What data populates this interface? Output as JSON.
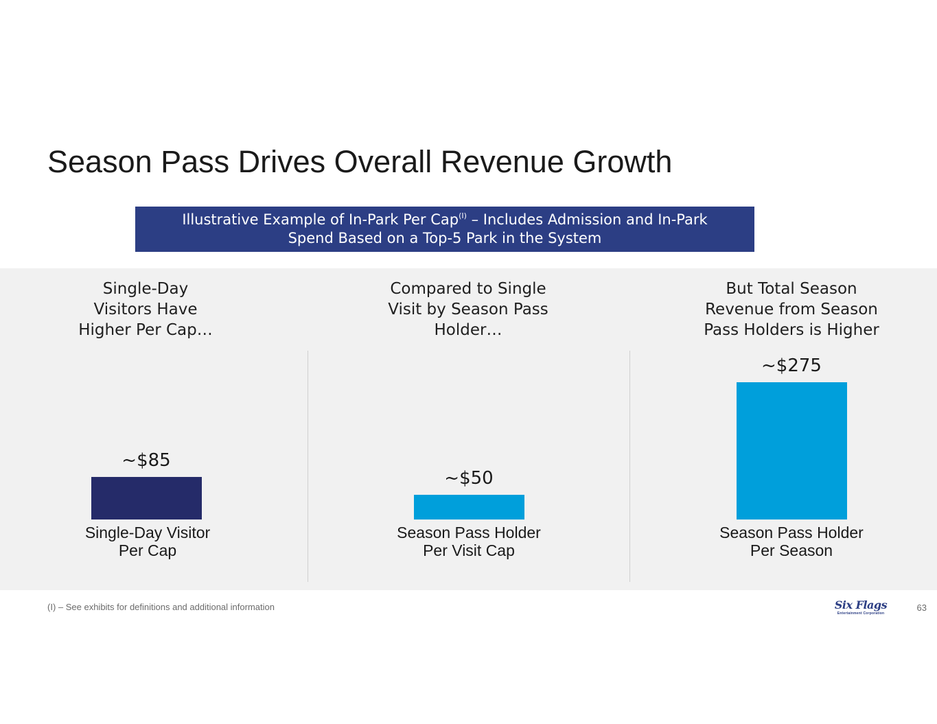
{
  "slide": {
    "title": "Season Pass Drives Overall Revenue Growth",
    "banner": {
      "line1_before_sup": "Illustrative Example of In-Park Per Cap",
      "line1_sup": "(I)",
      "line1_after_sup": " – Includes Admission and In-Park",
      "line2": "Spend Based on a Top-5 Park in the System"
    },
    "footnote": "(I) – See exhibits for definitions and additional information",
    "logo": {
      "name": "Six Flags",
      "tagline": "Entertainment Corporation"
    },
    "page_number": "63"
  },
  "colors": {
    "banner": "#2c3e84",
    "single_day_bar": "#252b69",
    "season_pass_bar": "#009fdb",
    "panel_bg": "#f1f1f1"
  },
  "chart_data": {
    "type": "bar",
    "title": "Illustrative Example of In-Park Per Cap – Includes Admission and In-Park Spend Based on a Top-5 Park in the System",
    "ylim": [
      0,
      275
    ],
    "columns": [
      {
        "heading": [
          "Single-Day",
          "Visitors Have",
          "Higher Per Cap…"
        ],
        "category": [
          "Single-Day Visitor",
          "Per Cap"
        ],
        "value": 85,
        "value_label": "~$85",
        "color": "#252b69"
      },
      {
        "heading": [
          "Compared to Single",
          "Visit by Season Pass",
          "Holder…"
        ],
        "category": [
          "Season Pass Holder",
          "Per Visit Cap"
        ],
        "value": 50,
        "value_label": "~$50",
        "color": "#009fdb"
      },
      {
        "heading": [
          "But Total Season",
          "Revenue from Season",
          "Pass Holders is Higher"
        ],
        "category": [
          "Season Pass Holder",
          "Per Season"
        ],
        "value": 275,
        "value_label": "~$275",
        "color": "#009fdb"
      }
    ]
  }
}
